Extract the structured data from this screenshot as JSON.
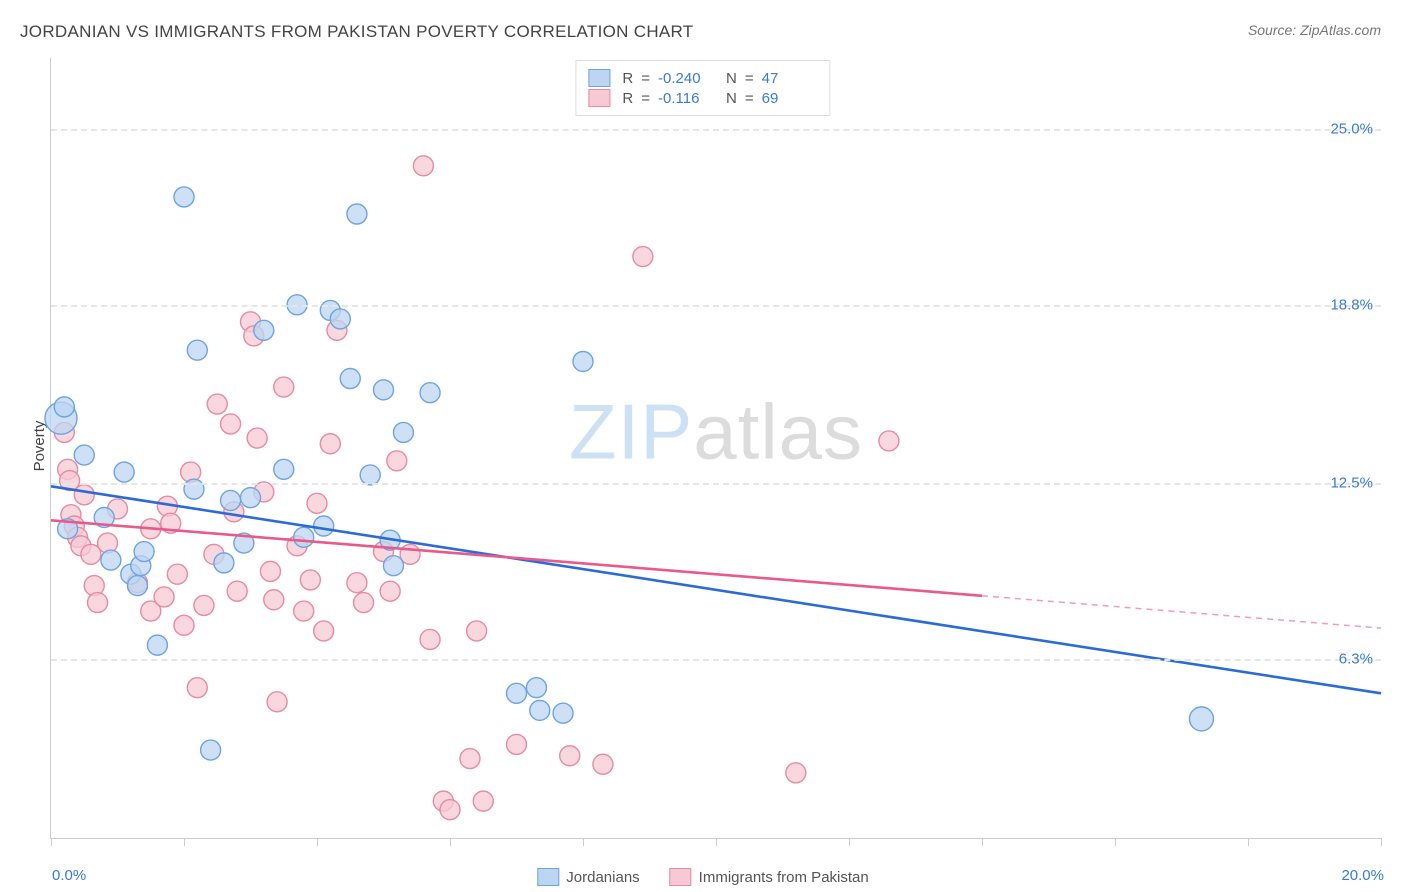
{
  "title": "JORDANIAN VS IMMIGRANTS FROM PAKISTAN POVERTY CORRELATION CHART",
  "source": "Source: ZipAtlas.com",
  "ylabel": "Poverty",
  "watermark_a": "ZIP",
  "watermark_b": "atlas",
  "chart": {
    "type": "scatter",
    "xlim": [
      0.0,
      20.0
    ],
    "ylim": [
      0.0,
      27.5
    ],
    "xticks_count": 11,
    "xaxis_min_label": "0.0%",
    "xaxis_max_label": "20.0%",
    "yticks": [
      {
        "value": 6.3,
        "label": "6.3%"
      },
      {
        "value": 12.5,
        "label": "12.5%"
      },
      {
        "value": 18.8,
        "label": "18.8%"
      },
      {
        "value": 25.0,
        "label": "25.0%"
      }
    ],
    "grid_color": "#e6e6e6",
    "background_color": "#ffffff",
    "marker_radius": 10,
    "marker_stroke_width": 1.4,
    "trend_line_width": 2.6,
    "series": [
      {
        "key": "jordanians",
        "label": "Jordanians",
        "fill": "#bcd6f2",
        "stroke": "#6ea4e0",
        "line_color": "#2b6bd6",
        "R": "-0.240",
        "N": "47",
        "trend": {
          "x1": 0.0,
          "y1": 12.4,
          "x2": 20.0,
          "y2": 5.1,
          "solid_until_x": 20.0
        },
        "points": [
          {
            "x": 0.15,
            "y": 14.8,
            "r": 16
          },
          {
            "x": 0.2,
            "y": 15.2
          },
          {
            "x": 0.25,
            "y": 10.9
          },
          {
            "x": 0.5,
            "y": 13.5
          },
          {
            "x": 0.8,
            "y": 11.3
          },
          {
            "x": 0.9,
            "y": 9.8
          },
          {
            "x": 1.1,
            "y": 12.9
          },
          {
            "x": 1.2,
            "y": 9.3
          },
          {
            "x": 1.3,
            "y": 8.9
          },
          {
            "x": 1.35,
            "y": 9.6
          },
          {
            "x": 1.4,
            "y": 10.1
          },
          {
            "x": 1.6,
            "y": 6.8
          },
          {
            "x": 2.0,
            "y": 22.6
          },
          {
            "x": 2.15,
            "y": 12.3
          },
          {
            "x": 2.2,
            "y": 17.2
          },
          {
            "x": 2.4,
            "y": 3.1
          },
          {
            "x": 2.6,
            "y": 9.7
          },
          {
            "x": 2.7,
            "y": 11.9
          },
          {
            "x": 2.9,
            "y": 10.4
          },
          {
            "x": 3.0,
            "y": 12.0
          },
          {
            "x": 3.2,
            "y": 17.9
          },
          {
            "x": 3.5,
            "y": 13.0
          },
          {
            "x": 3.7,
            "y": 18.8
          },
          {
            "x": 3.8,
            "y": 10.6
          },
          {
            "x": 4.1,
            "y": 11.0
          },
          {
            "x": 4.2,
            "y": 18.6
          },
          {
            "x": 4.35,
            "y": 18.3
          },
          {
            "x": 4.5,
            "y": 16.2
          },
          {
            "x": 4.6,
            "y": 22.0
          },
          {
            "x": 4.8,
            "y": 12.8
          },
          {
            "x": 5.0,
            "y": 15.8
          },
          {
            "x": 5.1,
            "y": 10.5
          },
          {
            "x": 5.15,
            "y": 9.6
          },
          {
            "x": 5.3,
            "y": 14.3
          },
          {
            "x": 5.7,
            "y": 15.7
          },
          {
            "x": 7.0,
            "y": 5.1
          },
          {
            "x": 7.3,
            "y": 5.3
          },
          {
            "x": 7.35,
            "y": 4.5
          },
          {
            "x": 7.7,
            "y": 4.4
          },
          {
            "x": 8.0,
            "y": 16.8
          },
          {
            "x": 17.3,
            "y": 4.2,
            "r": 12
          }
        ]
      },
      {
        "key": "pakistan",
        "label": "Immigrants from Pakistan",
        "fill": "#f6c9d4",
        "stroke": "#e88aa4",
        "line_color": "#e75a8a",
        "R": "-0.116",
        "N": "69",
        "trend": {
          "x1": 0.0,
          "y1": 11.2,
          "x2": 20.0,
          "y2": 7.4,
          "solid_until_x": 14.0
        },
        "points": [
          {
            "x": 0.2,
            "y": 14.3
          },
          {
            "x": 0.25,
            "y": 13.0
          },
          {
            "x": 0.28,
            "y": 12.6
          },
          {
            "x": 0.3,
            "y": 11.4
          },
          {
            "x": 0.35,
            "y": 11.0
          },
          {
            "x": 0.4,
            "y": 10.6
          },
          {
            "x": 0.45,
            "y": 10.3
          },
          {
            "x": 0.5,
            "y": 12.1
          },
          {
            "x": 0.6,
            "y": 10.0
          },
          {
            "x": 0.65,
            "y": 8.9
          },
          {
            "x": 0.7,
            "y": 8.3
          },
          {
            "x": 0.85,
            "y": 10.4
          },
          {
            "x": 1.0,
            "y": 11.6
          },
          {
            "x": 1.3,
            "y": 9.0
          },
          {
            "x": 1.5,
            "y": 10.9
          },
          {
            "x": 1.5,
            "y": 8.0
          },
          {
            "x": 1.7,
            "y": 8.5
          },
          {
            "x": 1.75,
            "y": 11.7
          },
          {
            "x": 1.8,
            "y": 11.1
          },
          {
            "x": 1.9,
            "y": 9.3
          },
          {
            "x": 2.0,
            "y": 7.5
          },
          {
            "x": 2.1,
            "y": 12.9
          },
          {
            "x": 2.2,
            "y": 5.3
          },
          {
            "x": 2.3,
            "y": 8.2
          },
          {
            "x": 2.45,
            "y": 10.0
          },
          {
            "x": 2.5,
            "y": 15.3
          },
          {
            "x": 2.7,
            "y": 14.6
          },
          {
            "x": 2.75,
            "y": 11.5
          },
          {
            "x": 2.8,
            "y": 8.7
          },
          {
            "x": 3.0,
            "y": 18.2
          },
          {
            "x": 3.05,
            "y": 17.7
          },
          {
            "x": 3.1,
            "y": 14.1
          },
          {
            "x": 3.2,
            "y": 12.2
          },
          {
            "x": 3.3,
            "y": 9.4
          },
          {
            "x": 3.35,
            "y": 8.4
          },
          {
            "x": 3.4,
            "y": 4.8
          },
          {
            "x": 3.5,
            "y": 15.9
          },
          {
            "x": 3.7,
            "y": 10.3
          },
          {
            "x": 3.8,
            "y": 8.0
          },
          {
            "x": 3.9,
            "y": 9.1
          },
          {
            "x": 4.0,
            "y": 11.8
          },
          {
            "x": 4.1,
            "y": 7.3
          },
          {
            "x": 4.2,
            "y": 13.9
          },
          {
            "x": 4.3,
            "y": 17.9
          },
          {
            "x": 4.6,
            "y": 9.0
          },
          {
            "x": 4.7,
            "y": 8.3
          },
          {
            "x": 5.0,
            "y": 10.1
          },
          {
            "x": 5.1,
            "y": 8.7
          },
          {
            "x": 5.2,
            "y": 13.3
          },
          {
            "x": 5.4,
            "y": 10.0
          },
          {
            "x": 5.6,
            "y": 23.7
          },
          {
            "x": 5.7,
            "y": 7.0
          },
          {
            "x": 5.9,
            "y": 1.3
          },
          {
            "x": 6.0,
            "y": 1.0
          },
          {
            "x": 6.3,
            "y": 2.8
          },
          {
            "x": 6.4,
            "y": 7.3
          },
          {
            "x": 6.5,
            "y": 1.3
          },
          {
            "x": 7.0,
            "y": 3.3
          },
          {
            "x": 7.8,
            "y": 2.9
          },
          {
            "x": 8.3,
            "y": 2.6
          },
          {
            "x": 8.9,
            "y": 20.5
          },
          {
            "x": 11.2,
            "y": 2.3
          },
          {
            "x": 12.6,
            "y": 14.0
          }
        ]
      }
    ]
  },
  "legend_stats_labels": {
    "R": "R",
    "N": "N",
    "eq": "="
  }
}
